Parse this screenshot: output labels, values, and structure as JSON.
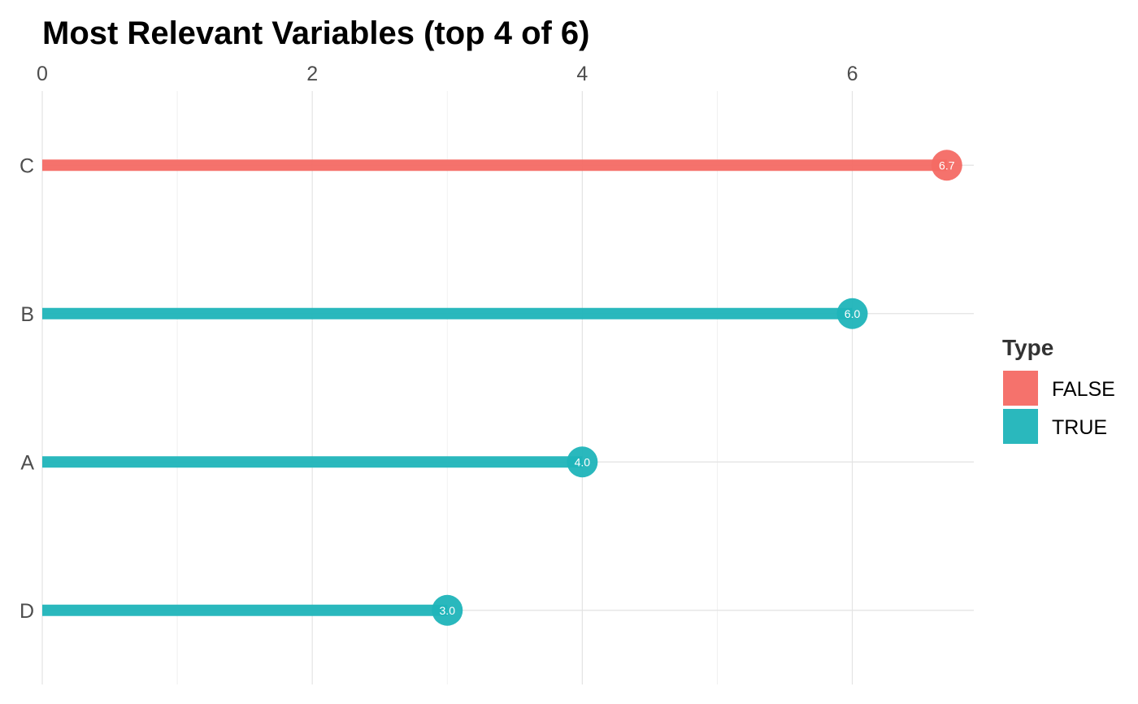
{
  "chart_data": {
    "type": "bar",
    "title": "Most Relevant Variables (top 4 of 6)",
    "xlabel": "",
    "ylabel": "",
    "orientation": "horizontal",
    "style": "lollipop",
    "xaxis_position": "top",
    "xlim": [
      0,
      6.9
    ],
    "xticks": [
      0,
      2,
      4,
      6
    ],
    "grid": true,
    "categories": [
      "C",
      "B",
      "A",
      "D"
    ],
    "values": [
      6.7,
      6.0,
      4.0,
      3.0
    ],
    "value_labels": [
      "6.7",
      "6.0",
      "4.0",
      "3.0"
    ],
    "type_values": [
      "FALSE",
      "TRUE",
      "TRUE",
      "TRUE"
    ],
    "legend": {
      "title": "Type",
      "placement": "right",
      "entries": [
        {
          "label": "FALSE",
          "color": "#F46A64"
        },
        {
          "label": "TRUE",
          "color": "#1FB4B9"
        }
      ]
    }
  }
}
